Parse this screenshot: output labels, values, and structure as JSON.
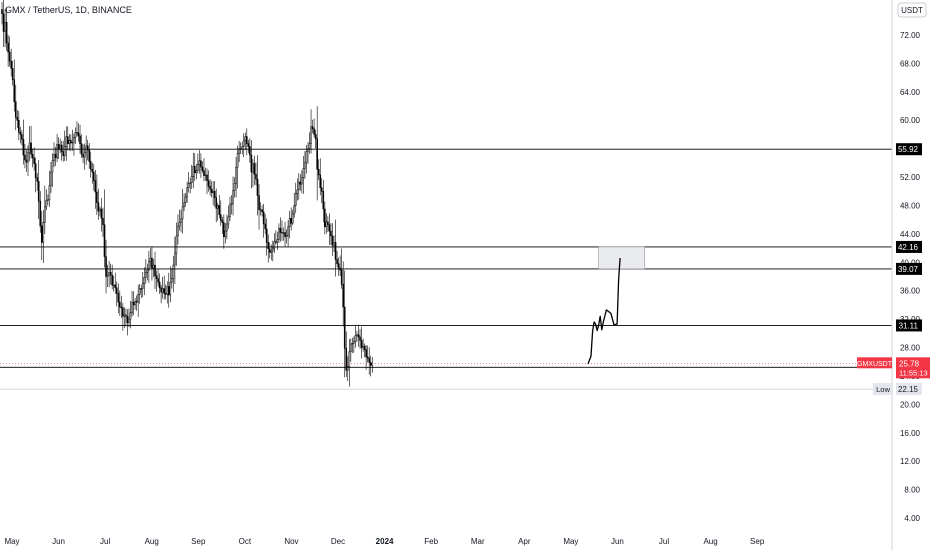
{
  "chart_data": {
    "type": "candlestick",
    "title": "GMX / TetherUS, 1D, BINANCE",
    "currency_unit": "USDT",
    "x_labels": [
      "May",
      "Jun",
      "Jul",
      "Aug",
      "Sep",
      "Oct",
      "Nov",
      "Dec",
      "2024",
      "Feb",
      "Mar",
      "Apr",
      "May",
      "Jun",
      "Jul",
      "Aug",
      "Sep"
    ],
    "x_label_bold_index": 8,
    "x_label_months_from_may_2023": [
      0,
      1,
      2,
      3,
      4,
      5,
      6,
      7,
      8,
      9,
      10,
      11,
      12,
      13,
      14,
      15,
      16
    ],
    "y_ticks": [
      4,
      8,
      12,
      16,
      20,
      24,
      28,
      32,
      36,
      40,
      44,
      48,
      52,
      56,
      60,
      64,
      68,
      72
    ],
    "y_tick_labels_shown": [
      "72.00",
      "68.00",
      "64.00",
      "60.00",
      "56.00",
      "52.00",
      "48.00",
      "44.00",
      "40.00",
      "36.00",
      "32.00",
      "28.00",
      "24.00",
      "20.00",
      "16.00",
      "12.00",
      "8.00",
      "4.00"
    ],
    "ylim": [
      1.5,
      76
    ],
    "candle_color": "#000000",
    "candle_fill": "#ffffff",
    "closes": [
      75.0,
      72.5,
      73.8,
      70.9,
      69.6,
      68.3,
      67.3,
      65.7,
      62.6,
      60.4,
      60.0,
      58.3,
      58.0,
      57.3,
      55.1,
      54.4,
      54.1,
      55.5,
      56.8,
      55.2,
      54.7,
      53.9,
      51.9,
      51.4,
      48.6,
      45.1,
      42.8,
      45.6,
      47.8,
      48.7,
      48.8,
      50.8,
      52.7,
      54.3,
      55.2,
      54.7,
      56.6,
      55.9,
      56.5,
      55.6,
      55.0,
      56.3,
      57.7,
      56.7,
      57.2,
      56.8,
      56.9,
      57.6,
      58.3,
      58.2,
      57.8,
      56.7,
      55.2,
      54.8,
      55.5,
      56.4,
      55.8,
      54.2,
      53.1,
      52.7,
      51.5,
      49.9,
      48.4,
      47.2,
      47.5,
      46.2,
      45.3,
      40.8,
      38.0,
      38.2,
      38.6,
      38.2,
      36.8,
      36.8,
      36.4,
      35.6,
      34.4,
      33.7,
      33.6,
      32.4,
      32.6,
      32.4,
      31.5,
      32.0,
      32.9,
      34.4,
      34.0,
      34.5,
      34.4,
      35.5,
      36.3,
      36.3,
      37.0,
      37.9,
      38.6,
      38.9,
      40.1,
      40.6,
      39.2,
      39.6,
      38.1,
      37.7,
      37.2,
      36.4,
      35.8,
      36.3,
      35.6,
      35.5,
      36.6,
      35.4,
      37.2,
      37.7,
      39.6,
      41.3,
      43.7,
      45.1,
      45.6,
      46.1,
      47.8,
      48.4,
      49.2,
      50.5,
      51.1,
      51.2,
      52.1,
      53.5,
      52.6,
      52.9,
      53.8,
      54.3,
      53.4,
      52.9,
      52.2,
      52.3,
      51.5,
      50.7,
      50.3,
      49.8,
      50.0,
      49.1,
      47.6,
      48.0,
      46.7,
      45.9,
      45.6,
      43.6,
      44.4,
      45.4,
      46.4,
      48.1,
      48.3,
      50.1,
      51.1,
      53.4,
      55.3,
      56.0,
      55.9,
      56.3,
      57.1,
      57.7,
      56.7,
      56.3,
      55.1,
      52.7,
      53.9,
      52.4,
      51.7,
      49.4,
      47.4,
      47.4,
      47.1,
      45.4,
      44.7,
      42.8,
      41.9,
      41.4,
      41.6,
      42.0,
      42.9,
      42.8,
      43.2,
      44.8,
      44.2,
      44.1,
      44.2,
      43.6,
      43.8,
      45.0,
      46.2,
      45.5,
      46.8,
      48.0,
      49.7,
      50.2,
      51.3,
      51.0,
      51.9,
      53.2,
      54.1,
      55.6,
      56.0,
      56.7,
      59.1,
      58.8,
      58.0,
      57.4,
      53.1,
      52.3,
      50.5,
      50.0,
      47.5,
      45.0,
      45.7,
      45.3,
      44.4,
      43.7,
      42.4,
      42.8,
      40.4,
      39.8,
      39.2,
      38.9,
      36.9,
      33.7,
      27.9,
      24.8,
      25.3,
      27.4,
      28.5,
      28.6,
      28.9,
      29.7,
      29.8,
      29.5,
      29.0,
      28.0,
      28.2,
      27.7,
      26.7,
      26.5,
      25.9,
      25.5,
      25.8
    ],
    "horizontal_levels": [
      55.92,
      42.16,
      39.07,
      31.11,
      25.22
    ],
    "level_labels": [
      "55.92",
      "42.16",
      "39.07",
      "31.11",
      "25.22"
    ],
    "level_color": "#000000",
    "current_price": {
      "symbol": "GMXUSDT",
      "price_label": "25.78",
      "countdown": "11:55:13",
      "price": 25.78,
      "color": "#f23645"
    },
    "low_marker": {
      "label": "Low",
      "value_label": "22.15",
      "price": 22.15
    },
    "target_box": {
      "price_top": 42.16,
      "price_bottom": 39.07,
      "start_day": 390,
      "end_day": 420,
      "fill": "#e9ebee"
    },
    "projection_path": [
      [
        383,
        25.7
      ],
      [
        385,
        26.8
      ],
      [
        386,
        30.3
      ],
      [
        387,
        31.6
      ],
      [
        388,
        31.3
      ],
      [
        389,
        30.4
      ],
      [
        390,
        31.2
      ],
      [
        391,
        32.4
      ],
      [
        392,
        30.5
      ],
      [
        393,
        31.6
      ],
      [
        395,
        33.3
      ],
      [
        398,
        32.8
      ],
      [
        400,
        31.2
      ],
      [
        402,
        31.3
      ],
      [
        403,
        37.5
      ],
      [
        404,
        40.6
      ]
    ]
  }
}
